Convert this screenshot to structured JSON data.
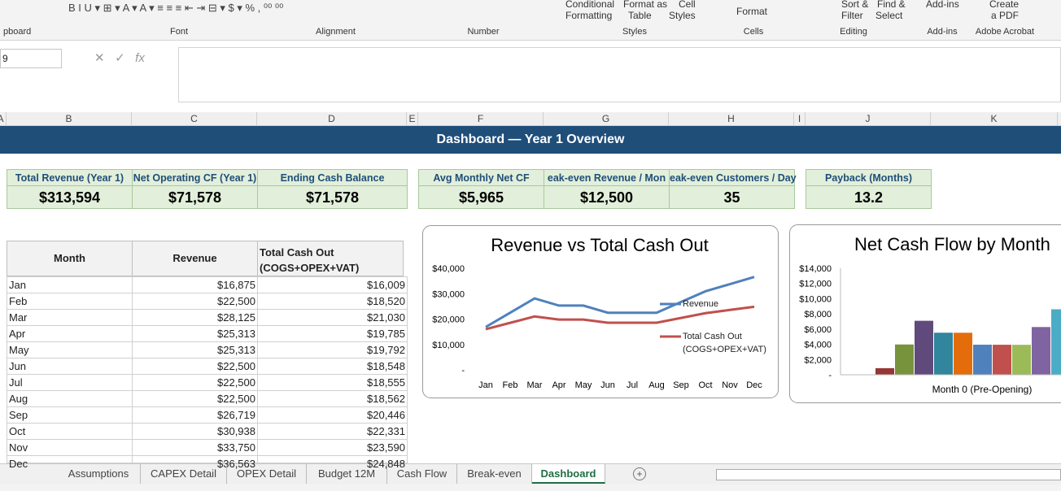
{
  "ribbon": {
    "groups": [
      "pboard",
      "Font",
      "Alignment",
      "Number",
      "Styles",
      "Cells",
      "Editing",
      "Add-ins",
      "Adobe Acrobat"
    ],
    "buttons": [
      "Conditional",
      "Formatting",
      "Format as",
      "Table",
      "Cell",
      "Styles",
      "Format",
      "Sort &",
      "Filter",
      "Find &",
      "Select",
      "Add-ins",
      "Create",
      "a PDF"
    ]
  },
  "name_box": "9",
  "columns": [
    "A",
    "B",
    "C",
    "D",
    "E",
    "F",
    "G",
    "H",
    "I",
    "J",
    "K"
  ],
  "banner": "Dashboard — Year 1 Overview",
  "kpis": [
    {
      "label": "Total Revenue (Year 1)",
      "value": "$313,594"
    },
    {
      "label": "Net Operating CF (Year 1)",
      "value": "$71,578"
    },
    {
      "label": "Ending Cash Balance",
      "value": "$71,578"
    },
    {
      "label": "Avg Monthly Net CF",
      "value": "$5,965"
    },
    {
      "label": "eak-even Revenue / Mon",
      "value": "$12,500"
    },
    {
      "label": "eak-even Customers / Day",
      "value": "35"
    },
    {
      "label": "Payback (Months)",
      "value": "13.2"
    }
  ],
  "table": {
    "headers": [
      "Month",
      "Revenue",
      "Total Cash Out (COGS+OPEX+VAT)"
    ],
    "rows": [
      [
        "Jan",
        "$16,875",
        "$16,009"
      ],
      [
        "Feb",
        "$22,500",
        "$18,520"
      ],
      [
        "Mar",
        "$28,125",
        "$21,030"
      ],
      [
        "Apr",
        "$25,313",
        "$19,785"
      ],
      [
        "May",
        "$25,313",
        "$19,792"
      ],
      [
        "Jun",
        "$22,500",
        "$18,548"
      ],
      [
        "Jul",
        "$22,500",
        "$18,555"
      ],
      [
        "Aug",
        "$22,500",
        "$18,562"
      ],
      [
        "Sep",
        "$26,719",
        "$20,446"
      ],
      [
        "Oct",
        "$30,938",
        "$22,331"
      ],
      [
        "Nov",
        "$33,750",
        "$23,590"
      ],
      [
        "Dec",
        "$36,563",
        "$24,848"
      ]
    ]
  },
  "sheet_tabs": [
    "Assumptions",
    "CAPEX Detail",
    "OPEX Detail",
    "Budget 12M",
    "Cash Flow",
    "Break-even",
    "Dashboard"
  ],
  "chart_data": [
    {
      "type": "line",
      "title": "Revenue vs Total Cash Out",
      "categories": [
        "Jan",
        "Feb",
        "Mar",
        "Apr",
        "May",
        "Jun",
        "Jul",
        "Aug",
        "Sep",
        "Oct",
        "Nov",
        "Dec"
      ],
      "series": [
        {
          "name": "Revenue",
          "color": "#4f81bd",
          "values": [
            16875,
            22500,
            28125,
            25313,
            25313,
            22500,
            22500,
            22500,
            26719,
            30938,
            33750,
            36563
          ]
        },
        {
          "name": "Total Cash Out (COGS+OPEX+VAT)",
          "color": "#c0504d",
          "values": [
            16009,
            18520,
            21030,
            19785,
            19792,
            18548,
            18555,
            18562,
            20446,
            22331,
            23590,
            24848
          ]
        }
      ],
      "ylim": [
        0,
        40000
      ],
      "yticks": [
        {
          "value": 0,
          "label": "-"
        },
        {
          "value": 10000,
          "label": "$10,000"
        },
        {
          "value": 20000,
          "label": "$20,000"
        },
        {
          "value": 30000,
          "label": "$30,000"
        },
        {
          "value": 40000,
          "label": "$40,000"
        }
      ]
    },
    {
      "type": "bar",
      "title": "Net Cash Flow by Month",
      "x_label": "Month 0 (Pre-Opening)",
      "categories": [
        null,
        null,
        null,
        null,
        null,
        null,
        null,
        null,
        null,
        null,
        null
      ],
      "values": [
        0,
        866,
        3980,
        7095,
        5528,
        5521,
        3952,
        3945,
        3938,
        6273,
        8607
      ],
      "colors": [
        "#4f81bd",
        "#953735",
        "#77933c",
        "#604a7b",
        "#31859c",
        "#e46c0a",
        "#4f81bd",
        "#c0504d",
        "#9bbb59",
        "#8064a2",
        "#4bacc6"
      ],
      "ylim": [
        0,
        14000
      ],
      "yticks": [
        {
          "value": 0,
          "label": "-"
        },
        {
          "value": 2000,
          "label": "$2,000"
        },
        {
          "value": 4000,
          "label": "$4,000"
        },
        {
          "value": 6000,
          "label": "$6,000"
        },
        {
          "value": 8000,
          "label": "$8,000"
        },
        {
          "value": 10000,
          "label": "$10,000"
        },
        {
          "value": 12000,
          "label": "$12,000"
        },
        {
          "value": 14000,
          "label": "$14,000"
        }
      ]
    }
  ]
}
